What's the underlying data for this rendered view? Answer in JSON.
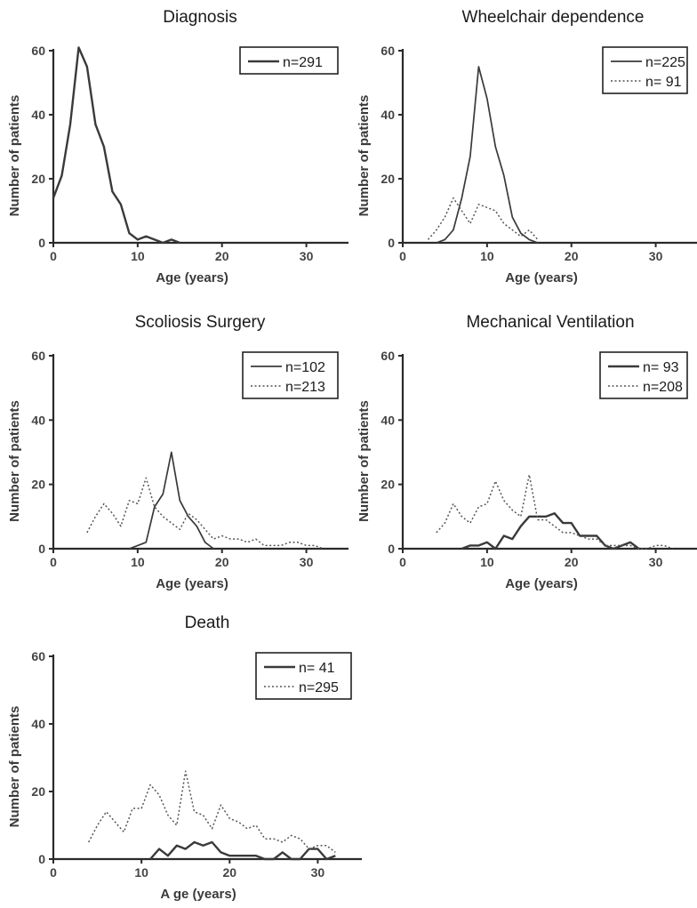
{
  "chart_data": [
    {
      "type": "line",
      "title": "Diagnosis",
      "xlabel": "Age (years)",
      "ylabel": "Number of patients",
      "xlim": [
        0,
        35
      ],
      "ylim": [
        0,
        60
      ],
      "xticks": [
        0,
        10,
        20,
        30
      ],
      "yticks": [
        0,
        20,
        40,
        60
      ],
      "legend": "top-right",
      "series": [
        {
          "name": "n=291",
          "style": "solid-thick",
          "color": "#3a3a3a",
          "x": [
            0,
            1,
            2,
            3,
            4,
            5,
            6,
            7,
            8,
            9,
            10,
            11,
            12,
            13,
            14,
            15
          ],
          "y": [
            14,
            21,
            37,
            61,
            55,
            37,
            30,
            16,
            12,
            3,
            1,
            2,
            1,
            0,
            1,
            0
          ]
        }
      ]
    },
    {
      "type": "line",
      "title": "Wheelchair dependence",
      "xlabel": "Age (years)",
      "ylabel": "Number of patients",
      "xlim": [
        0,
        35
      ],
      "ylim": [
        0,
        60
      ],
      "xticks": [
        0,
        10,
        20,
        30
      ],
      "yticks": [
        0,
        20,
        40,
        60
      ],
      "legend": "top-right",
      "series": [
        {
          "name": "n=225",
          "style": "solid",
          "color": "#3a3a3a",
          "x": [
            4,
            5,
            6,
            7,
            8,
            9,
            10,
            11,
            12,
            13,
            14,
            15,
            16
          ],
          "y": [
            0,
            1,
            4,
            14,
            27,
            55,
            45,
            30,
            21,
            8,
            3,
            1,
            0
          ]
        },
        {
          "name": "n= 91",
          "style": "dotted",
          "color": "#555555",
          "x": [
            3,
            4,
            5,
            6,
            7,
            8,
            9,
            10,
            11,
            12,
            13,
            14,
            15,
            16
          ],
          "y": [
            1,
            4,
            8,
            14,
            10,
            6,
            12,
            11,
            10,
            6,
            4,
            2,
            4,
            1
          ]
        }
      ]
    },
    {
      "type": "line",
      "title": "Scoliosis Surgery",
      "xlabel": "Age (years)",
      "ylabel": "Number of patients",
      "xlim": [
        0,
        35
      ],
      "ylim": [
        0,
        60
      ],
      "xticks": [
        0,
        10,
        20,
        30
      ],
      "yticks": [
        0,
        20,
        40,
        60
      ],
      "legend": "top-right",
      "series": [
        {
          "name": "n=102",
          "style": "solid",
          "color": "#3a3a3a",
          "x": [
            9,
            10,
            11,
            12,
            13,
            14,
            15,
            16,
            17,
            18,
            19
          ],
          "y": [
            0,
            1,
            2,
            13,
            17,
            30,
            15,
            10,
            7,
            2,
            0
          ]
        },
        {
          "name": "n=213",
          "style": "dotted",
          "color": "#555555",
          "x": [
            4,
            5,
            6,
            7,
            8,
            9,
            10,
            11,
            12,
            13,
            14,
            15,
            16,
            17,
            18,
            19,
            20,
            21,
            22,
            23,
            24,
            25,
            26,
            27,
            28,
            29,
            30,
            31,
            32
          ],
          "y": [
            5,
            10,
            14,
            11,
            7,
            15,
            14,
            22,
            13,
            10,
            8,
            6,
            11,
            9,
            6,
            3,
            4,
            3,
            3,
            2,
            3,
            1,
            1,
            1,
            2,
            2,
            1,
            1,
            0
          ]
        }
      ]
    },
    {
      "type": "line",
      "title": "Mechanical Ventilation",
      "xlabel": "Age (years)",
      "ylabel": "Number of patients",
      "xlim": [
        0,
        35
      ],
      "ylim": [
        0,
        60
      ],
      "xticks": [
        0,
        10,
        20,
        30
      ],
      "yticks": [
        0,
        20,
        40,
        60
      ],
      "legend": "top-right",
      "series": [
        {
          "name": "n= 93",
          "style": "solid-thick",
          "color": "#3a3a3a",
          "x": [
            7,
            8,
            9,
            10,
            11,
            12,
            13,
            14,
            15,
            16,
            17,
            18,
            19,
            20,
            21,
            22,
            23,
            24,
            25,
            26,
            27,
            28
          ],
          "y": [
            0,
            1,
            1,
            2,
            0,
            4,
            3,
            7,
            10,
            10,
            10,
            11,
            8,
            8,
            4,
            4,
            4,
            1,
            0,
            1,
            2,
            0
          ]
        },
        {
          "name": "n=208",
          "style": "dotted",
          "color": "#555555",
          "x": [
            4,
            5,
            6,
            7,
            8,
            9,
            10,
            11,
            12,
            13,
            14,
            15,
            16,
            17,
            18,
            19,
            20,
            21,
            22,
            23,
            24,
            25,
            26,
            27,
            28,
            29,
            30,
            31,
            32
          ],
          "y": [
            5,
            8,
            14,
            10,
            8,
            13,
            14,
            21,
            15,
            12,
            10,
            23,
            9,
            9,
            7,
            5,
            5,
            4,
            3,
            3,
            1,
            1,
            1,
            1,
            0,
            0,
            1,
            1,
            0
          ]
        }
      ]
    },
    {
      "type": "line",
      "title": "Death",
      "xlabel": "A ge (years)",
      "ylabel": "Number of patients",
      "xlim": [
        0,
        35
      ],
      "ylim": [
        0,
        60
      ],
      "xticks": [
        0,
        10,
        20,
        30
      ],
      "yticks": [
        0,
        20,
        40,
        60
      ],
      "legend": "top-right",
      "series": [
        {
          "name": "n= 41",
          "style": "solid-thick",
          "color": "#3a3a3a",
          "x": [
            11,
            12,
            13,
            14,
            15,
            16,
            17,
            18,
            19,
            20,
            21,
            22,
            23,
            24,
            25,
            26,
            27,
            28,
            29,
            30,
            31,
            32
          ],
          "y": [
            0,
            3,
            1,
            4,
            3,
            5,
            4,
            5,
            2,
            1,
            1,
            1,
            1,
            0,
            0,
            2,
            0,
            0,
            3,
            3,
            0,
            1
          ]
        },
        {
          "name": "n=295",
          "style": "dotted",
          "color": "#555555",
          "x": [
            4,
            5,
            6,
            7,
            8,
            9,
            10,
            11,
            12,
            13,
            14,
            15,
            16,
            17,
            18,
            19,
            20,
            21,
            22,
            23,
            24,
            25,
            26,
            27,
            28,
            29,
            30,
            31,
            32
          ],
          "y": [
            5,
            10,
            14,
            11,
            8,
            15,
            15,
            22,
            19,
            13,
            10,
            26,
            14,
            13,
            9,
            16,
            12,
            11,
            9,
            10,
            6,
            6,
            5,
            7,
            6,
            3,
            4,
            4,
            2
          ]
        }
      ]
    }
  ]
}
